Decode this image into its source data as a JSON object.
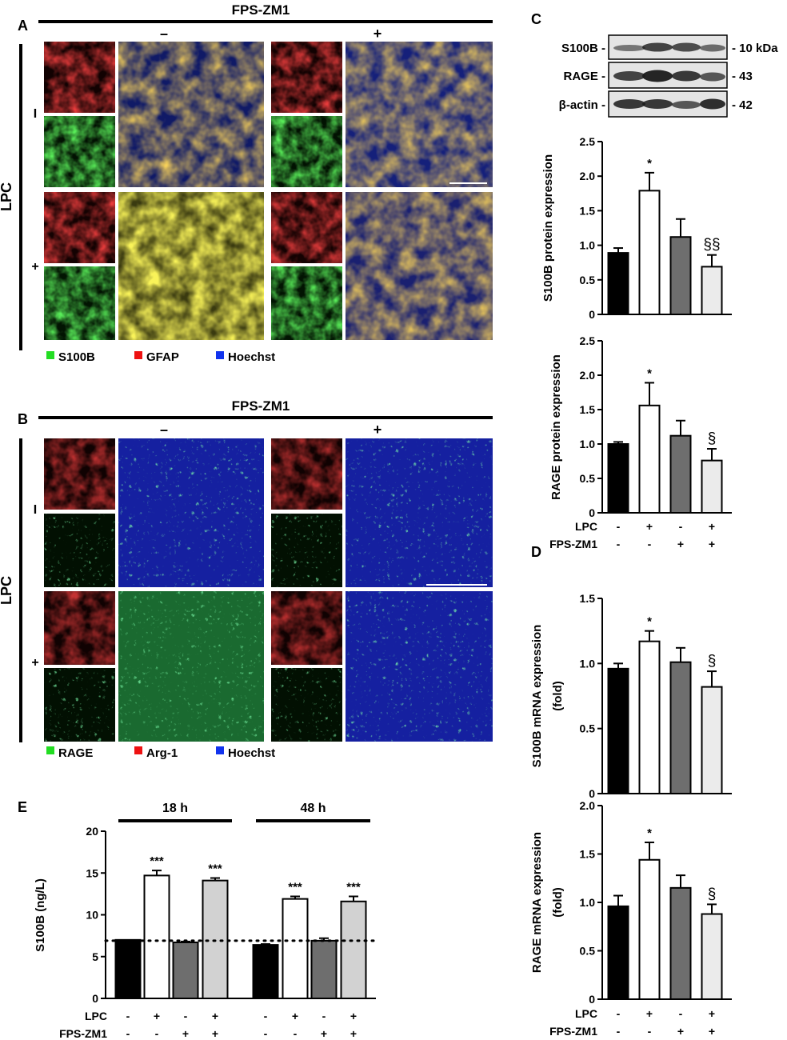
{
  "panels": {
    "A": {
      "letter": "A",
      "treatment_header": "FPS-ZM1",
      "col_minus": "–",
      "col_plus": "+",
      "row_title": "LPC",
      "row_minus": "I",
      "row_plus": "+",
      "legend": [
        {
          "label": "S100B",
          "color": "#22dd22"
        },
        {
          "label": "GFAP",
          "color": "#ee1111"
        },
        {
          "label": "Hoechst",
          "color": "#1133ee"
        }
      ]
    },
    "B": {
      "letter": "B",
      "treatment_header": "FPS-ZM1",
      "col_minus": "–",
      "col_plus": "+",
      "row_title": "LPC",
      "row_minus": "I",
      "row_plus": "+",
      "legend": [
        {
          "label": "RAGE",
          "color": "#22dd22"
        },
        {
          "label": "Arg-1",
          "color": "#ee1111"
        },
        {
          "label": "Hoechst",
          "color": "#1133ee"
        }
      ]
    },
    "C": {
      "letter": "C",
      "blot_rows": [
        {
          "name": "S100B -",
          "size": "- 10 kDa"
        },
        {
          "name": "RAGE -",
          "size": "- 43"
        },
        {
          "name": "β-actin -",
          "size": "- 42"
        }
      ]
    },
    "D": {
      "letter": "D"
    },
    "E": {
      "letter": "E",
      "groups": [
        "18 h",
        "48 h"
      ]
    }
  },
  "bar_colors": [
    "#000000",
    "#ffffff",
    "#6e6e6e",
    "#ebebeb"
  ],
  "chart_data": [
    {
      "id": "c1",
      "type": "bar",
      "ylabel": "S100B protein expression",
      "ylim": [
        0,
        2.5
      ],
      "ticks": [
        "0",
        "0.5",
        "1.0",
        "1.5",
        "2.0",
        "2.5"
      ],
      "values": [
        0.89,
        1.79,
        1.12,
        0.69
      ],
      "errors": [
        0.07,
        0.26,
        0.26,
        0.17
      ],
      "annotations": [
        "",
        "*",
        "",
        "§§"
      ],
      "conditions": {
        "LPC": [
          "-",
          "+",
          "-",
          "+"
        ],
        "FPS-ZM1": [
          "-",
          "-",
          "+",
          "+"
        ]
      }
    },
    {
      "id": "c2",
      "type": "bar",
      "ylabel": "RAGE protein expression",
      "ylim": [
        0,
        2.5
      ],
      "ticks": [
        "0",
        "0.5",
        "1.0",
        "1.5",
        "2.0",
        "2.5"
      ],
      "values": [
        1.0,
        1.56,
        1.12,
        0.76
      ],
      "errors": [
        0.03,
        0.33,
        0.22,
        0.17
      ],
      "annotations": [
        "",
        "*",
        "",
        "§"
      ],
      "conditions": {
        "LPC": [
          "-",
          "+",
          "-",
          "+"
        ],
        "FPS-ZM1": [
          "-",
          "-",
          "+",
          "+"
        ]
      },
      "condition_labels": [
        "LPC",
        "FPS-ZM1"
      ]
    },
    {
      "id": "d1",
      "type": "bar",
      "ylabel": "S100B mRNA expression",
      "ylabel2": "(fold)",
      "ylim": [
        0,
        1.5
      ],
      "ticks": [
        "0",
        "0.5",
        "1.0",
        "1.5"
      ],
      "values": [
        0.96,
        1.17,
        1.01,
        0.82
      ],
      "errors": [
        0.04,
        0.08,
        0.11,
        0.12
      ],
      "annotations": [
        "",
        "*",
        "",
        "§"
      ]
    },
    {
      "id": "d2",
      "type": "bar",
      "ylabel": "RAGE mRNA expression",
      "ylabel2": "(fold)",
      "ylim": [
        0,
        2.0
      ],
      "ticks": [
        "0",
        "0.5",
        "1.0",
        "1.5",
        "2.0"
      ],
      "values": [
        0.96,
        1.44,
        1.15,
        0.88
      ],
      "errors": [
        0.11,
        0.18,
        0.13,
        0.1
      ],
      "annotations": [
        "",
        "*",
        "",
        "§"
      ],
      "conditions": {
        "LPC": [
          "-",
          "+",
          "-",
          "+"
        ],
        "FPS-ZM1": [
          "-",
          "-",
          "+",
          "+"
        ]
      },
      "condition_labels": [
        "LPC",
        "FPS-ZM1"
      ]
    },
    {
      "id": "e1",
      "type": "bar",
      "ylabel": "S100B (ng/L)",
      "ylim": [
        0,
        20
      ],
      "ticks": [
        "0",
        "5",
        "10",
        "15",
        "20"
      ],
      "groups": [
        "18 h",
        "48 h"
      ],
      "values": [
        7.0,
        14.7,
        6.7,
        14.1,
        6.4,
        11.9,
        6.9,
        11.6
      ],
      "errors": [
        0.0,
        0.6,
        0.1,
        0.3,
        0.1,
        0.3,
        0.3,
        0.6
      ],
      "colors": [
        "#000000",
        "#ffffff",
        "#6e6e6e",
        "#d2d2d2",
        "#000000",
        "#ffffff",
        "#6e6e6e",
        "#d2d2d2"
      ],
      "annotations": [
        "",
        "***",
        "",
        "***",
        "",
        "***",
        "",
        "***"
      ],
      "baseline": 6.9,
      "conditions": {
        "LPC": [
          "-",
          "+",
          "-",
          "+",
          "-",
          "+",
          "-",
          "+"
        ],
        "FPS-ZM1": [
          "-",
          "-",
          "+",
          "+",
          "-",
          "-",
          "+",
          "+"
        ]
      },
      "condition_labels": [
        "LPC",
        "FPS-ZM1"
      ]
    }
  ]
}
